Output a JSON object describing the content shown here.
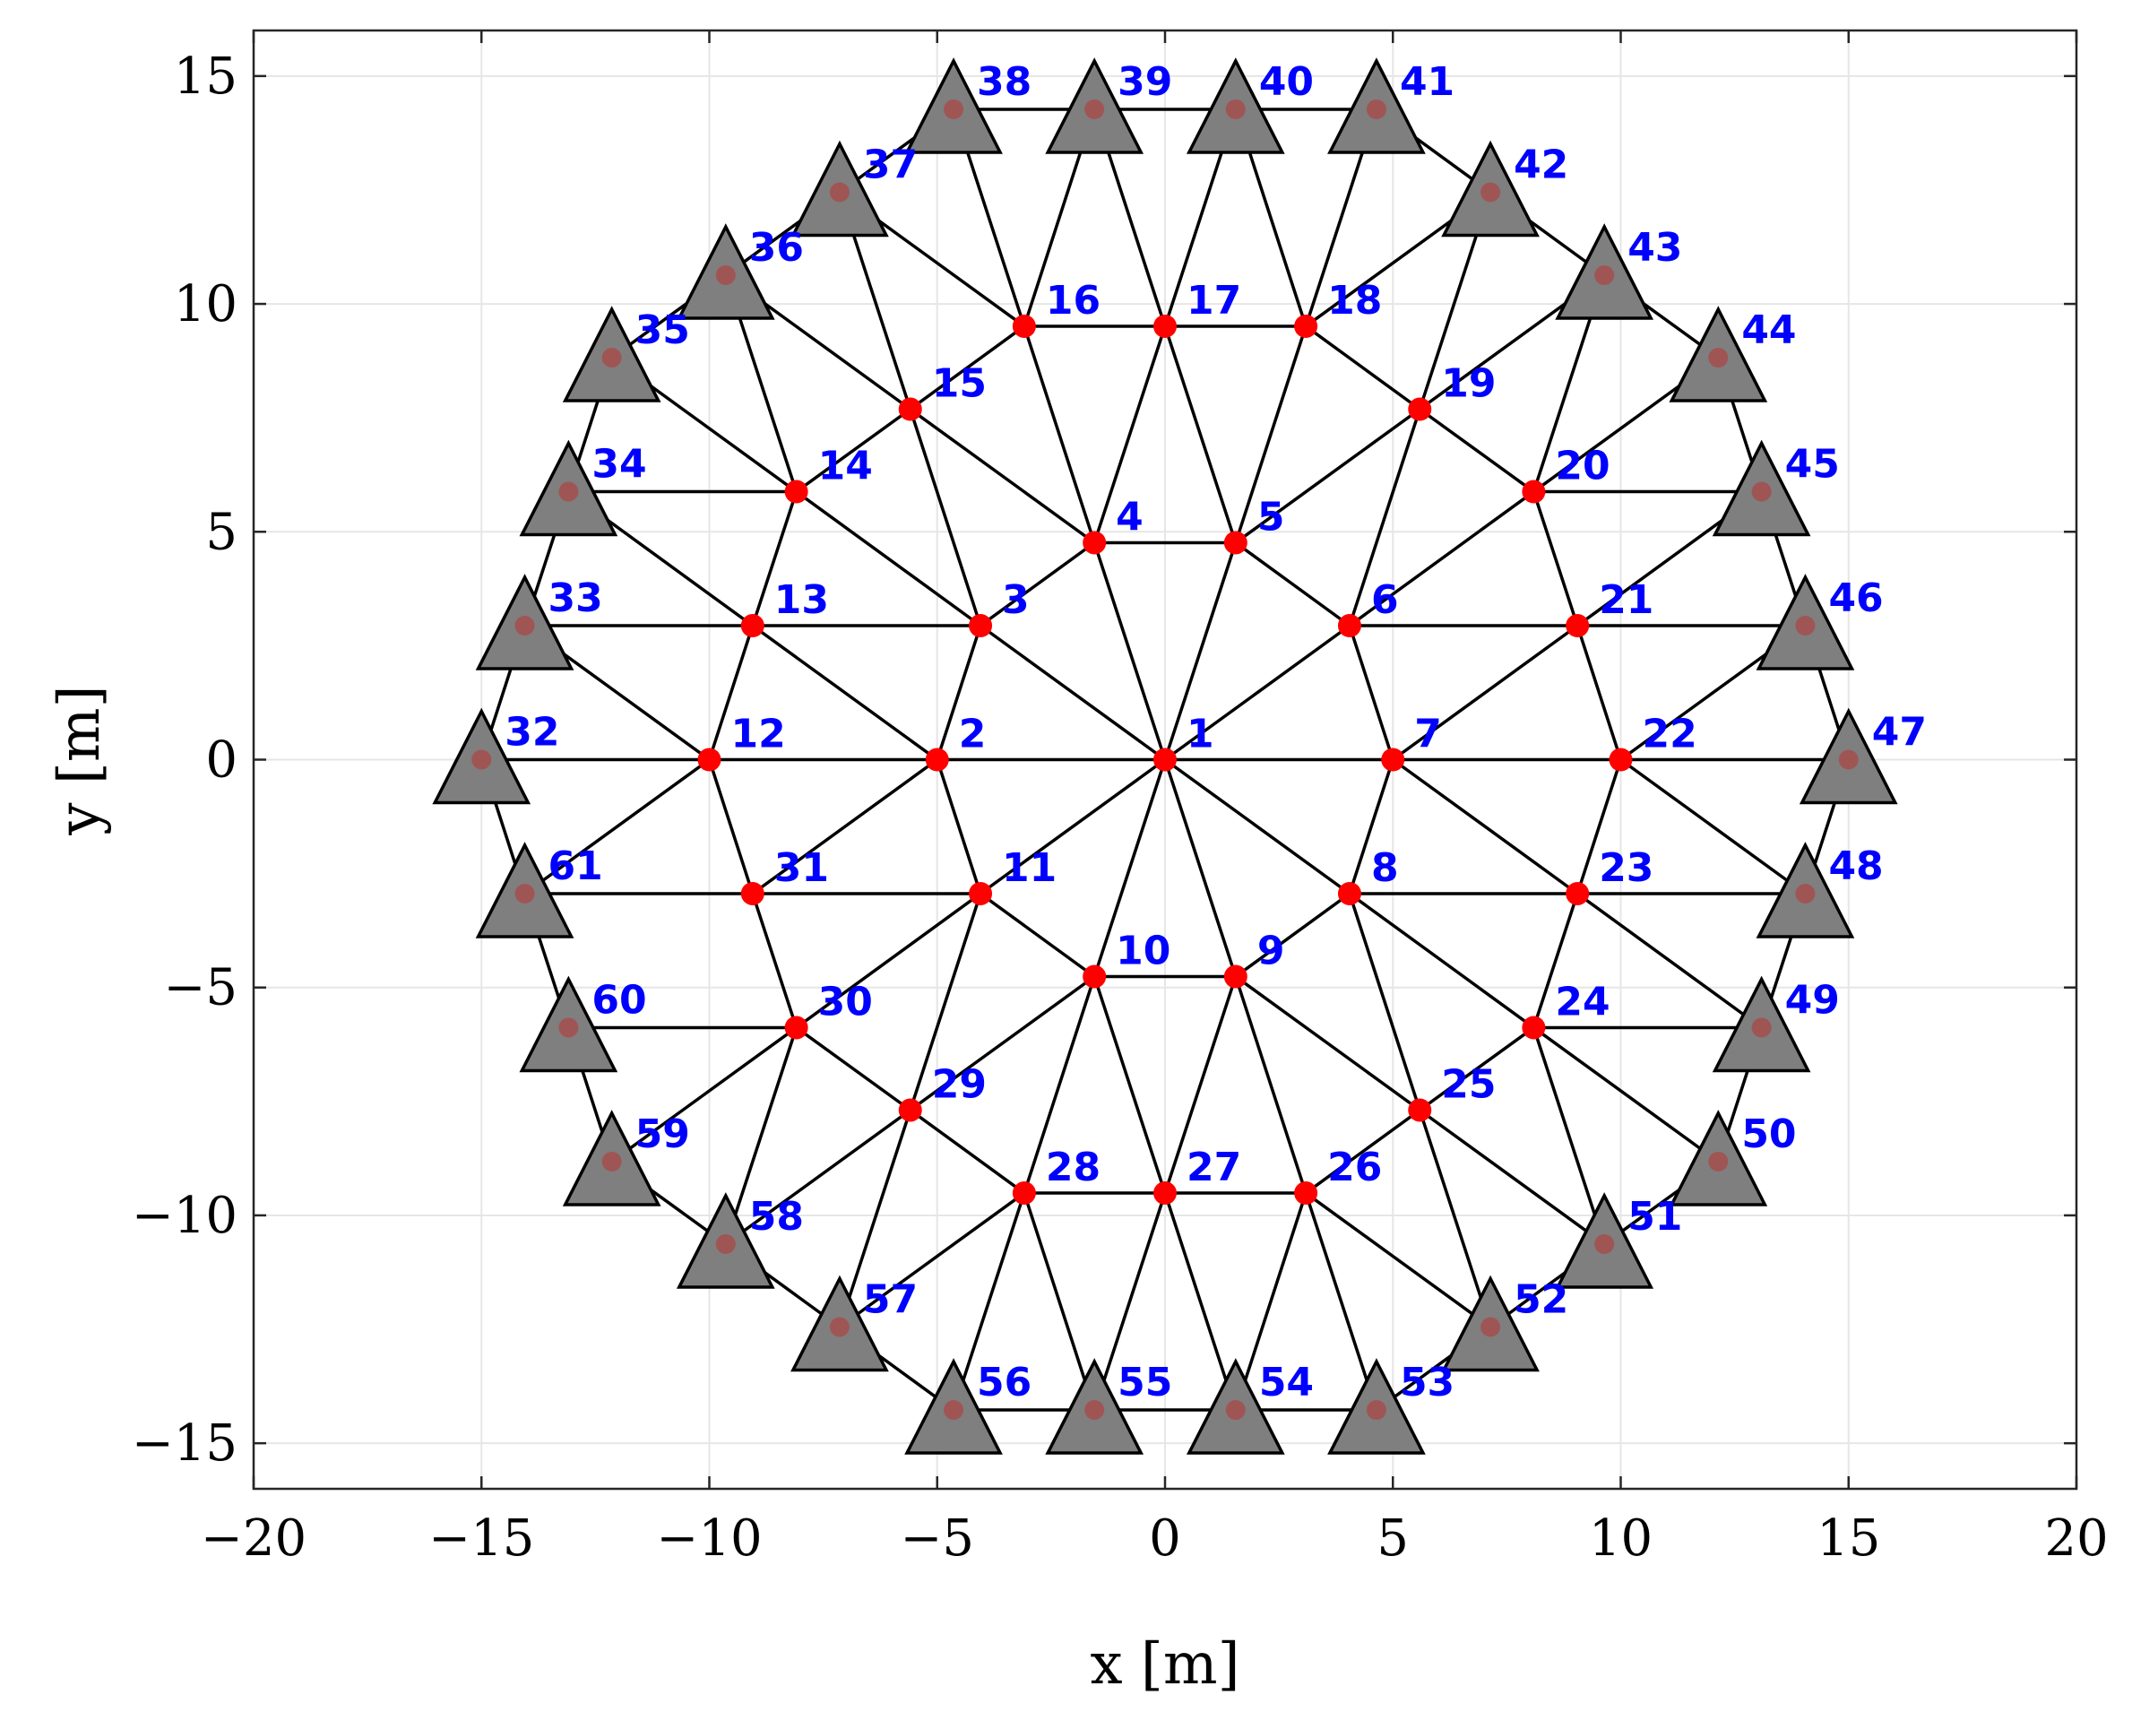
{
  "chart_data": {
    "type": "scatter",
    "title": "",
    "xlabel": "x [m]",
    "ylabel": "y [m]",
    "xlim": [
      -20,
      20
    ],
    "ylim": [
      -16,
      16
    ],
    "xticks": [
      -20,
      -15,
      -10,
      -5,
      0,
      5,
      10,
      15,
      20
    ],
    "yticks": [
      -15,
      -10,
      -5,
      0,
      5,
      10,
      15
    ],
    "xtick_labels": [
      "−20",
      "−15",
      "−10",
      "−5",
      "0",
      "5",
      "10",
      "15",
      "20"
    ],
    "ytick_labels": [
      "−15",
      "−10",
      "−5",
      "0",
      "5",
      "10",
      "15"
    ],
    "grid": true,
    "free_nodes": [
      {
        "id": "1",
        "x": 0.0,
        "y": 0.0
      },
      {
        "id": "2",
        "x": -5.0,
        "y": 0.0
      },
      {
        "id": "3",
        "x": -4.05,
        "y": 2.94
      },
      {
        "id": "4",
        "x": -1.55,
        "y": 4.76
      },
      {
        "id": "5",
        "x": 1.55,
        "y": 4.76
      },
      {
        "id": "6",
        "x": 4.05,
        "y": 2.94
      },
      {
        "id": "7",
        "x": 5.0,
        "y": 0.0
      },
      {
        "id": "8",
        "x": 4.05,
        "y": -2.94
      },
      {
        "id": "9",
        "x": 1.55,
        "y": -4.76
      },
      {
        "id": "10",
        "x": -1.55,
        "y": -4.76
      },
      {
        "id": "11",
        "x": -4.05,
        "y": -2.94
      },
      {
        "id": "12",
        "x": -10.0,
        "y": 0.0
      },
      {
        "id": "13",
        "x": -9.05,
        "y": 2.94
      },
      {
        "id": "14",
        "x": -8.09,
        "y": 5.88
      },
      {
        "id": "15",
        "x": -5.59,
        "y": 7.69
      },
      {
        "id": "16",
        "x": -3.09,
        "y": 9.51
      },
      {
        "id": "17",
        "x": 0.0,
        "y": 9.51
      },
      {
        "id": "18",
        "x": 3.09,
        "y": 9.51
      },
      {
        "id": "19",
        "x": 5.59,
        "y": 7.69
      },
      {
        "id": "20",
        "x": 8.09,
        "y": 5.88
      },
      {
        "id": "21",
        "x": 9.05,
        "y": 2.94
      },
      {
        "id": "22",
        "x": 10.0,
        "y": 0.0
      },
      {
        "id": "23",
        "x": 9.05,
        "y": -2.94
      },
      {
        "id": "24",
        "x": 8.09,
        "y": -5.88
      },
      {
        "id": "25",
        "x": 5.59,
        "y": -7.69
      },
      {
        "id": "26",
        "x": 3.09,
        "y": -9.51
      },
      {
        "id": "27",
        "x": 0.0,
        "y": -9.51
      },
      {
        "id": "28",
        "x": -3.09,
        "y": -9.51
      },
      {
        "id": "29",
        "x": -5.59,
        "y": -7.69
      },
      {
        "id": "30",
        "x": -8.09,
        "y": -5.88
      },
      {
        "id": "31",
        "x": -9.05,
        "y": -2.94
      }
    ],
    "support_nodes": [
      {
        "id": "32",
        "x": -15.0,
        "y": 0.0
      },
      {
        "id": "33",
        "x": -14.05,
        "y": 2.94
      },
      {
        "id": "34",
        "x": -13.09,
        "y": 5.88
      },
      {
        "id": "35",
        "x": -12.14,
        "y": 8.82
      },
      {
        "id": "36",
        "x": -9.64,
        "y": 10.63
      },
      {
        "id": "37",
        "x": -7.14,
        "y": 12.45
      },
      {
        "id": "38",
        "x": -4.64,
        "y": 14.27
      },
      {
        "id": "39",
        "x": -1.55,
        "y": 14.27
      },
      {
        "id": "40",
        "x": 1.55,
        "y": 14.27
      },
      {
        "id": "41",
        "x": 4.64,
        "y": 14.27
      },
      {
        "id": "42",
        "x": 7.14,
        "y": 12.45
      },
      {
        "id": "43",
        "x": 9.64,
        "y": 10.63
      },
      {
        "id": "44",
        "x": 12.14,
        "y": 8.82
      },
      {
        "id": "45",
        "x": 13.09,
        "y": 5.88
      },
      {
        "id": "46",
        "x": 14.05,
        "y": 2.94
      },
      {
        "id": "47",
        "x": 15.0,
        "y": 0.0
      },
      {
        "id": "48",
        "x": 14.05,
        "y": -2.94
      },
      {
        "id": "49",
        "x": 13.09,
        "y": -5.88
      },
      {
        "id": "50",
        "x": 12.14,
        "y": -8.82
      },
      {
        "id": "51",
        "x": 9.64,
        "y": -10.63
      },
      {
        "id": "52",
        "x": 7.14,
        "y": -12.45
      },
      {
        "id": "53",
        "x": 4.64,
        "y": -14.27
      },
      {
        "id": "54",
        "x": 1.55,
        "y": -14.27
      },
      {
        "id": "55",
        "x": -1.55,
        "y": -14.27
      },
      {
        "id": "56",
        "x": -4.64,
        "y": -14.27
      },
      {
        "id": "57",
        "x": -7.14,
        "y": -12.45
      },
      {
        "id": "58",
        "x": -9.64,
        "y": -10.63
      },
      {
        "id": "59",
        "x": -12.14,
        "y": -8.82
      },
      {
        "id": "60",
        "x": -13.09,
        "y": -5.88
      },
      {
        "id": "61",
        "x": -14.05,
        "y": -2.94
      }
    ],
    "edges": [
      [
        1,
        2
      ],
      [
        1,
        3
      ],
      [
        1,
        4
      ],
      [
        1,
        5
      ],
      [
        1,
        6
      ],
      [
        1,
        7
      ],
      [
        1,
        8
      ],
      [
        1,
        9
      ],
      [
        1,
        10
      ],
      [
        1,
        11
      ],
      [
        2,
        3
      ],
      [
        3,
        4
      ],
      [
        4,
        5
      ],
      [
        5,
        6
      ],
      [
        6,
        7
      ],
      [
        7,
        8
      ],
      [
        8,
        9
      ],
      [
        9,
        10
      ],
      [
        10,
        11
      ],
      [
        11,
        2
      ],
      [
        2,
        12
      ],
      [
        2,
        13
      ],
      [
        3,
        13
      ],
      [
        3,
        14
      ],
      [
        3,
        15
      ],
      [
        4,
        15
      ],
      [
        4,
        16
      ],
      [
        4,
        17
      ],
      [
        5,
        17
      ],
      [
        5,
        18
      ],
      [
        5,
        19
      ],
      [
        6,
        19
      ],
      [
        6,
        20
      ],
      [
        6,
        21
      ],
      [
        7,
        21
      ],
      [
        7,
        22
      ],
      [
        7,
        23
      ],
      [
        8,
        23
      ],
      [
        8,
        24
      ],
      [
        8,
        25
      ],
      [
        9,
        25
      ],
      [
        9,
        26
      ],
      [
        9,
        27
      ],
      [
        10,
        27
      ],
      [
        10,
        28
      ],
      [
        10,
        29
      ],
      [
        11,
        29
      ],
      [
        11,
        30
      ],
      [
        11,
        31
      ],
      [
        2,
        31
      ],
      [
        12,
        13
      ],
      [
        13,
        14
      ],
      [
        14,
        15
      ],
      [
        15,
        16
      ],
      [
        16,
        17
      ],
      [
        17,
        18
      ],
      [
        18,
        19
      ],
      [
        19,
        20
      ],
      [
        20,
        21
      ],
      [
        21,
        22
      ],
      [
        22,
        23
      ],
      [
        23,
        24
      ],
      [
        24,
        25
      ],
      [
        25,
        26
      ],
      [
        26,
        27
      ],
      [
        27,
        28
      ],
      [
        28,
        29
      ],
      [
        29,
        30
      ],
      [
        30,
        31
      ],
      [
        31,
        12
      ],
      [
        12,
        32
      ],
      [
        12,
        33
      ],
      [
        12,
        61
      ],
      [
        13,
        33
      ],
      [
        14,
        34
      ],
      [
        14,
        35
      ],
      [
        14,
        36
      ],
      [
        15,
        36
      ],
      [
        15,
        37
      ],
      [
        16,
        37
      ],
      [
        16,
        38
      ],
      [
        16,
        39
      ],
      [
        17,
        39
      ],
      [
        17,
        40
      ],
      [
        18,
        40
      ],
      [
        18,
        41
      ],
      [
        18,
        42
      ],
      [
        19,
        42
      ],
      [
        19,
        43
      ],
      [
        20,
        43
      ],
      [
        20,
        44
      ],
      [
        20,
        45
      ],
      [
        21,
        45
      ],
      [
        21,
        46
      ],
      [
        22,
        46
      ],
      [
        22,
        47
      ],
      [
        22,
        48
      ],
      [
        23,
        48
      ],
      [
        24,
        49
      ],
      [
        24,
        50
      ],
      [
        24,
        51
      ],
      [
        25,
        51
      ],
      [
        25,
        52
      ],
      [
        26,
        52
      ],
      [
        26,
        53
      ],
      [
        26,
        54
      ],
      [
        27,
        54
      ],
      [
        27,
        55
      ],
      [
        28,
        55
      ],
      [
        28,
        56
      ],
      [
        28,
        57
      ],
      [
        29,
        57
      ],
      [
        29,
        58
      ],
      [
        30,
        58
      ],
      [
        30,
        59
      ],
      [
        30,
        60
      ],
      [
        31,
        61
      ],
      [
        13,
        34
      ],
      [
        23,
        49
      ],
      [
        32,
        33
      ],
      [
        33,
        34
      ],
      [
        34,
        35
      ],
      [
        35,
        36
      ],
      [
        36,
        37
      ],
      [
        37,
        38
      ],
      [
        38,
        39
      ],
      [
        39,
        40
      ],
      [
        40,
        41
      ],
      [
        41,
        42
      ],
      [
        42,
        43
      ],
      [
        43,
        44
      ],
      [
        44,
        45
      ],
      [
        45,
        46
      ],
      [
        46,
        47
      ],
      [
        47,
        48
      ],
      [
        48,
        49
      ],
      [
        49,
        50
      ],
      [
        50,
        51
      ],
      [
        51,
        52
      ],
      [
        52,
        53
      ],
      [
        53,
        54
      ],
      [
        54,
        55
      ],
      [
        55,
        56
      ],
      [
        56,
        57
      ],
      [
        57,
        58
      ],
      [
        58,
        59
      ],
      [
        59,
        60
      ],
      [
        60,
        61
      ],
      [
        61,
        32
      ]
    ],
    "colors": {
      "free_node": "#ff0000",
      "support_fill": "#7f7f7f",
      "support_dot": "#a05555",
      "edge": "#000000",
      "label": "#0000ff",
      "grid": "#e6e6e6"
    }
  }
}
